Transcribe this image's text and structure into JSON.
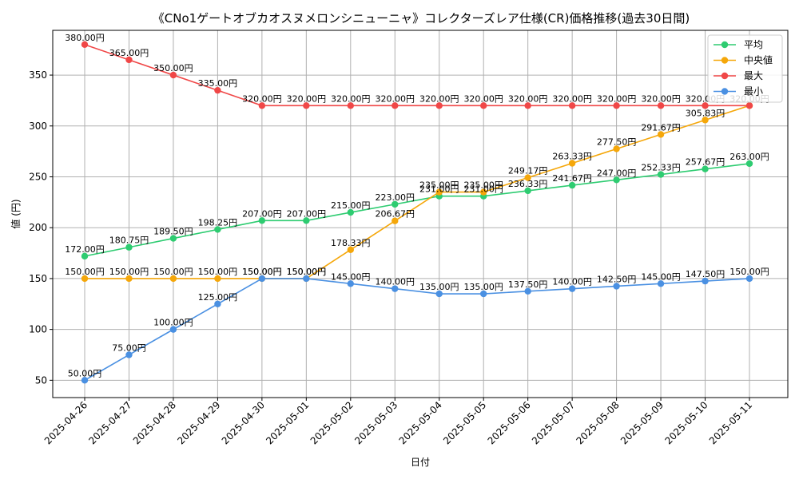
{
  "chart_data": {
    "type": "line",
    "title": "《CNo1ゲートオブカオスヌメロンシニューニャ》コレクターズレア仕様(CR)価格推移(過去30日間)",
    "xlabel": "日付",
    "ylabel": "値 (円)",
    "ylim": [
      33,
      394
    ],
    "yticks": [
      50,
      100,
      150,
      200,
      250,
      300,
      350
    ],
    "grid": true,
    "legend_position": "top-right",
    "value_suffix": "円",
    "x": [
      "2025-04-26",
      "2025-04-27",
      "2025-04-28",
      "2025-04-29",
      "2025-04-30",
      "2025-05-01",
      "2025-05-02",
      "2025-05-03",
      "2025-05-04",
      "2025-05-05",
      "2025-05-06",
      "2025-05-07",
      "2025-05-08",
      "2025-05-09",
      "2025-05-10",
      "2025-05-11"
    ],
    "series": [
      {
        "name": "平均",
        "color": "#2ecc71",
        "values": [
          172.0,
          180.75,
          189.5,
          198.25,
          207.0,
          207.0,
          215.0,
          223.0,
          231.0,
          231.0,
          236.33,
          241.67,
          247.0,
          252.33,
          257.67,
          263.0
        ]
      },
      {
        "name": "中央値",
        "color": "#f5a70a",
        "values": [
          150.0,
          150.0,
          150.0,
          150.0,
          150.0,
          150.0,
          178.33,
          206.67,
          235.0,
          235.0,
          249.17,
          263.33,
          277.5,
          291.67,
          305.83,
          320.0
        ]
      },
      {
        "name": "最大",
        "color": "#f04747",
        "values": [
          380.0,
          365.0,
          350.0,
          335.0,
          320.0,
          320.0,
          320.0,
          320.0,
          320.0,
          320.0,
          320.0,
          320.0,
          320.0,
          320.0,
          320.0,
          320.0
        ]
      },
      {
        "name": "最小",
        "color": "#4a90e2",
        "values": [
          50.0,
          75.0,
          100.0,
          125.0,
          150.0,
          150.0,
          145.0,
          140.0,
          135.0,
          135.0,
          137.5,
          140.0,
          142.5,
          145.0,
          147.5,
          150.0
        ]
      }
    ]
  }
}
